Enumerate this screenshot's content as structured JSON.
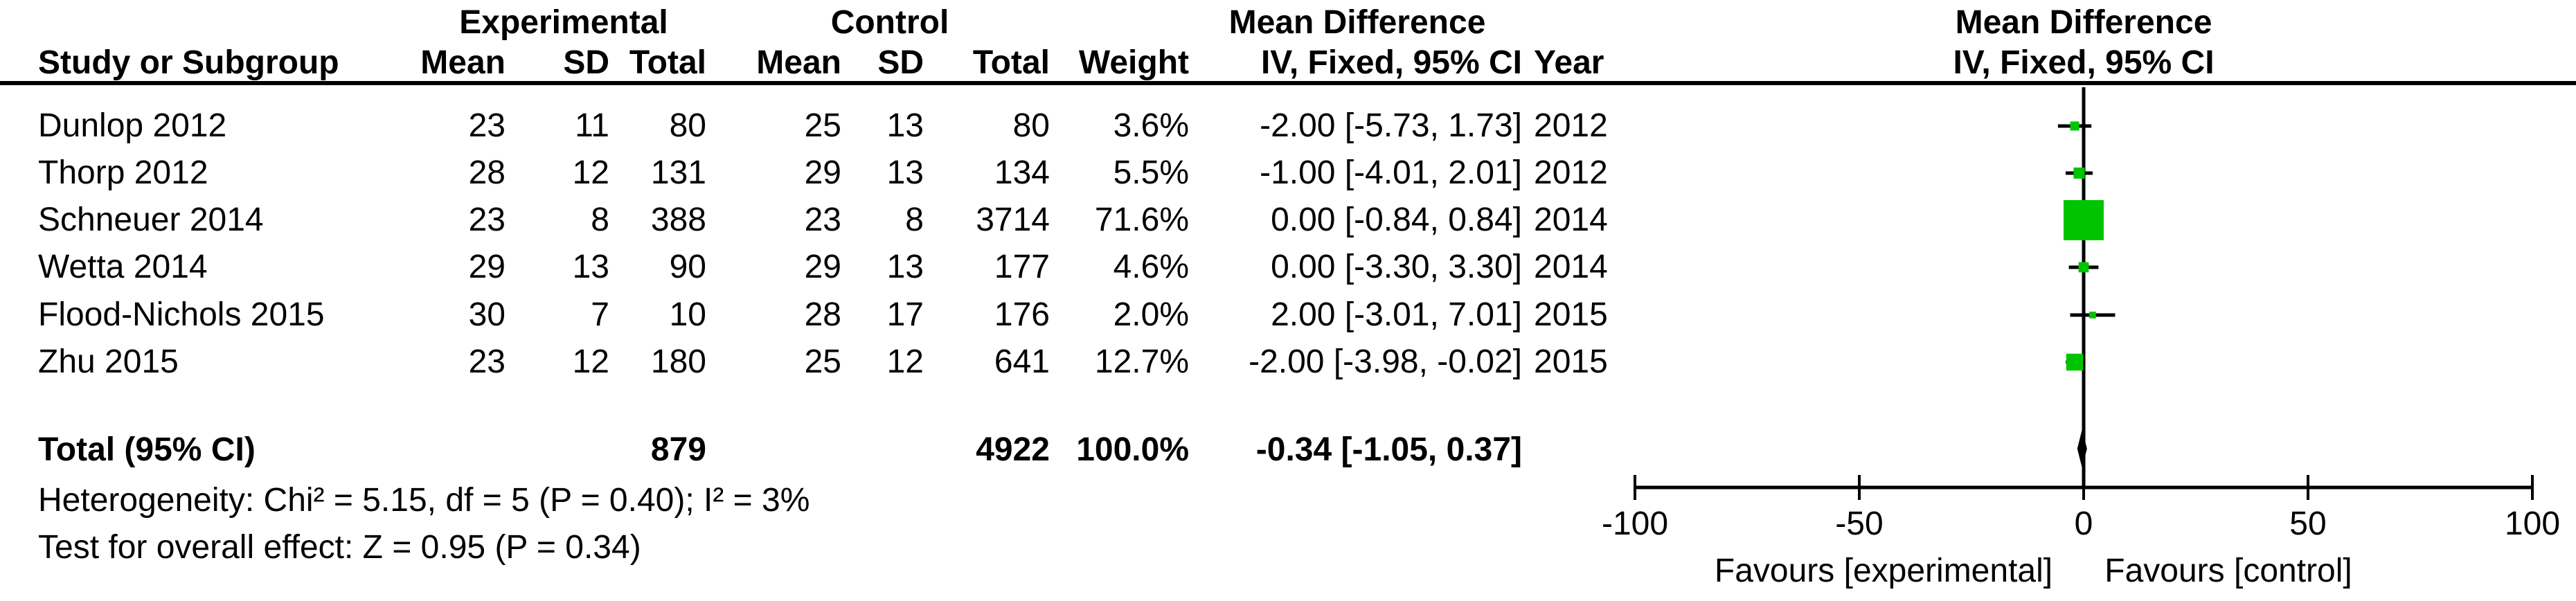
{
  "table": {
    "group_headers": {
      "experimental": "Experimental",
      "control": "Control",
      "mean_difference_left": "Mean Difference",
      "mean_difference_right": "Mean Difference"
    },
    "col_headers": {
      "study": "Study or Subgroup",
      "mean": "Mean",
      "sd": "SD",
      "total": "Total",
      "weight": "Weight",
      "ci": "IV, Fixed, 95% CI",
      "year": "Year",
      "ci_right": "IV, Fixed, 95% CI"
    },
    "rows": [
      {
        "study": "Dunlop 2012",
        "mean_e": "23",
        "sd_e": "11",
        "total_e": "80",
        "mean_c": "25",
        "sd_c": "13",
        "total_c": "80",
        "weight": "3.6%",
        "ci": "-2.00 [-5.73, 1.73]",
        "year": "2012"
      },
      {
        "study": "Thorp 2012",
        "mean_e": "28",
        "sd_e": "12",
        "total_e": "131",
        "mean_c": "29",
        "sd_c": "13",
        "total_c": "134",
        "weight": "5.5%",
        "ci": "-1.00 [-4.01, 2.01]",
        "year": "2012"
      },
      {
        "study": "Schneuer 2014",
        "mean_e": "23",
        "sd_e": "8",
        "total_e": "388",
        "mean_c": "23",
        "sd_c": "8",
        "total_c": "3714",
        "weight": "71.6%",
        "ci": "0.00 [-0.84, 0.84]",
        "year": "2014"
      },
      {
        "study": "Wetta 2014",
        "mean_e": "29",
        "sd_e": "13",
        "total_e": "90",
        "mean_c": "29",
        "sd_c": "13",
        "total_c": "177",
        "weight": "4.6%",
        "ci": "0.00 [-3.30, 3.30]",
        "year": "2014"
      },
      {
        "study": "Flood-Nichols 2015",
        "mean_e": "30",
        "sd_e": "7",
        "total_e": "10",
        "mean_c": "28",
        "sd_c": "17",
        "total_c": "176",
        "weight": "2.0%",
        "ci": "2.00 [-3.01, 7.01]",
        "year": "2015"
      },
      {
        "study": "Zhu 2015",
        "mean_e": "23",
        "sd_e": "12",
        "total_e": "180",
        "mean_c": "25",
        "sd_c": "12",
        "total_c": "641",
        "weight": "12.7%",
        "ci": "-2.00 [-3.98, -0.02]",
        "year": "2015"
      }
    ],
    "total_row": {
      "label": "Total (95% CI)",
      "total_e": "879",
      "total_c": "4922",
      "weight": "100.0%",
      "ci": "-0.34 [-1.05, 0.37]"
    },
    "heterogeneity": "Heterogeneity: Chi² = 5.15, df = 5 (P = 0.40); I² = 3%",
    "overall_effect": "Test for overall effect: Z = 0.95 (P = 0.34)"
  },
  "chart_data": {
    "type": "forest",
    "effect_measure": "Mean Difference, IV, Fixed, 95% CI",
    "x_axis": {
      "min": -100,
      "max": 100,
      "ticks": [
        -100,
        -50,
        0,
        50,
        100
      ]
    },
    "studies": [
      {
        "name": "Dunlop 2012",
        "md": -2.0,
        "lo": -5.73,
        "hi": 1.73,
        "weight": 3.6
      },
      {
        "name": "Thorp 2012",
        "md": -1.0,
        "lo": -4.01,
        "hi": 2.01,
        "weight": 5.5
      },
      {
        "name": "Schneuer 2014",
        "md": 0.0,
        "lo": -0.84,
        "hi": 0.84,
        "weight": 71.6
      },
      {
        "name": "Wetta 2014",
        "md": 0.0,
        "lo": -3.3,
        "hi": 3.3,
        "weight": 4.6
      },
      {
        "name": "Flood-Nichols 2015",
        "md": 2.0,
        "lo": -3.01,
        "hi": 7.01,
        "weight": 2.0
      },
      {
        "name": "Zhu 2015",
        "md": -2.0,
        "lo": -3.98,
        "hi": -0.02,
        "weight": 12.7
      }
    ],
    "total": {
      "md": -0.34,
      "lo": -1.05,
      "hi": 0.37,
      "weight": 100.0
    },
    "favours_left": "Favours [experimental]",
    "favours_right": "Favours [control]",
    "square_color": "#00C400",
    "diamond_color": "#000000",
    "line_color": "#000000"
  }
}
